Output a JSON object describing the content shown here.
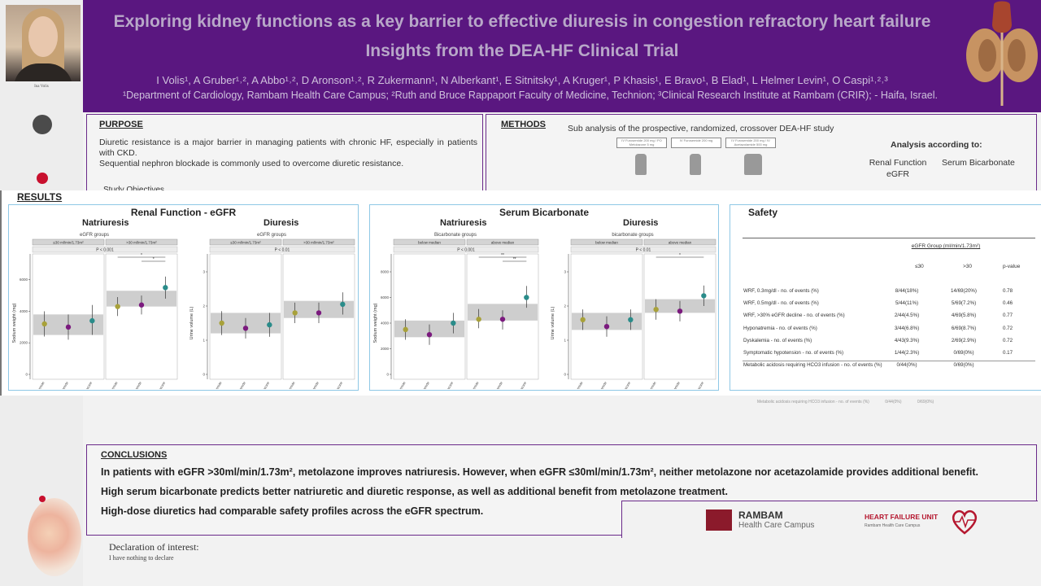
{
  "presenter": {
    "name": "Ina Volis"
  },
  "header": {
    "title_line1": "Exploring kidney functions as a key barrier to effective diuresis in congestion refractory heart failure",
    "title_line2": "Insights from the DEA-HF Clinical Trial",
    "authors": "I Volis¹, A Gruber¹˒², A Abbo¹˒², D Aronson¹˒², R Zukermann¹, N Alberkant¹, E Sitnitsky¹, A Kruger¹, P Khasis¹, E Bravo¹, B Elad¹, L Helmer Levin¹, O Caspi¹˒²˒³",
    "affiliations": "¹Department of Cardiology, Rambam Health Care Campus; ²Ruth and Bruce Rappaport Faculty of Medicine, Technion; ³Clinical Research Institute at Rambam (CRIR); - Haifa, Israel."
  },
  "purpose": {
    "title": "PURPOSE",
    "text1": "Diuretic resistance is a major barrier in managing patients with chronic HF, especially in patients with CKD.",
    "text2": "Sequential nephron blockade is commonly used to overcome diuretic resistance.",
    "study_objectives": "Study Objectives"
  },
  "methods": {
    "title": "METHODS",
    "subtitle": "Sub analysis of the prospective, randomized, crossover DEA-HF study",
    "analysis_title": "Analysis according to:",
    "renal_label": "Renal Function eGFR",
    "bicarb_label": "Serum Bicarbonate",
    "arm1": "IV Furosemide 200 mg / PO Metolazone 5 mg",
    "arm2": "IV Furosemide 200 mg",
    "arm3": "IV Furosemide 200 mg / IV Acetazolamide 500 mg"
  },
  "results": {
    "title": "RESULTS",
    "renal": {
      "heading": "Renal Function - eGFR",
      "natriuresis": "Natriuresis",
      "diuresis": "Diuresis",
      "group_title": "eGFR groups",
      "group_low": "≤30 ml/min/1.73m²",
      "group_high": ">30 ml/min/1.73m²"
    },
    "bicarb": {
      "heading": "Serum Bicarbonate",
      "natriuresis": "Natriuresis",
      "diuresis": "Diuresis",
      "group_title_nat": "Bicarbonate groups",
      "group_title_diu": "bicarbonate groups",
      "group_low": "below median",
      "group_high": "above median"
    },
    "labels": {
      "sodium_axis": "Sodium weight (mg)",
      "urine_axis": "Urine volume (L)",
      "p_001": "P < 0.001",
      "p_01": "P < 0.01",
      "star": "*",
      "stars": "**",
      "treatments": [
        "Furosemide",
        "Furosemide + acetazolamide",
        "Furosemide + metolazone"
      ]
    },
    "safety": {
      "title": "Safety",
      "group_header": "eGFR Group (ml/min/1.73m²)",
      "col_low": "≤30",
      "col_high": ">30",
      "col_p": "p-value",
      "rows": [
        {
          "label": "WRF, 0.3mg/dl - no. of events (%)",
          "low": "8/44(18%)",
          "high": "14/69(20%)",
          "p": "0.78"
        },
        {
          "label": "WRF, 0.5mg/dl - no. of events (%)",
          "low": "5/44(11%)",
          "high": "5/69(7.2%)",
          "p": "0.46"
        },
        {
          "label": "WRF, >30% eGFR decline - no. of events (%)",
          "low": "2/44(4.5%)",
          "high": "4/69(5.8%)",
          "p": "0.77"
        },
        {
          "label": "Hyponatremia - no. of events (%)",
          "low": "3/44(6.8%)",
          "high": "6/69(8.7%)",
          "p": "0.72"
        },
        {
          "label": "Dyskalemia - no. of events (%)",
          "low": "4/43(9.3%)",
          "high": "2/69(2.9%)",
          "p": "0.72"
        },
        {
          "label": "Symptomatic hypotension - no. of events (%)",
          "low": "1/44(2.3%)",
          "high": "0/69(0%)",
          "p": "0.17"
        },
        {
          "label": "Metabolic acidosis requiring HCO3 infusion - no. of events (%)",
          "low": "0/44(0%)",
          "high": "0/69(0%)",
          "p": ""
        }
      ],
      "ghost_row": "Metabolic acidosis requiring HCO3 infusion - no. of events (%)",
      "ghost_low": "0/44(0%)",
      "ghost_high": "0/69(0%)"
    }
  },
  "chart_data": [
    {
      "type": "scatter",
      "title": "Renal Function - eGFR: Natriuresis",
      "ylabel": "Sodium weight (mg)",
      "ylim": [
        0,
        6500
      ],
      "yticks": [
        0,
        2000,
        4000,
        6000
      ],
      "panels": [
        "≤30 ml/min/1.73m²",
        ">30 ml/min/1.73m²"
      ],
      "categories": [
        "Furosemide",
        "Furosemide + acetazolamide",
        "Furosemide + metolazone"
      ],
      "series": [
        {
          "name": "≤30 ml/min/1.73m²",
          "values": [
            3200,
            3000,
            3400
          ],
          "lower": [
            2400,
            2200,
            2500
          ],
          "upper": [
            4000,
            3800,
            4400
          ],
          "band": [
            2500,
            3800
          ]
        },
        {
          "name": ">30 ml/min/1.73m²",
          "values": [
            4300,
            4400,
            5500
          ],
          "lower": [
            3700,
            3800,
            4800
          ],
          "upper": [
            4900,
            5000,
            6200
          ],
          "band": [
            4300,
            5300
          ]
        }
      ],
      "annotations": [
        "P < 0.001",
        "*",
        "*"
      ]
    },
    {
      "type": "scatter",
      "title": "Renal Function - eGFR: Diuresis",
      "ylabel": "Urine volume (L)",
      "ylim": [
        0,
        3
      ],
      "yticks": [
        0,
        1,
        2,
        3
      ],
      "panels": [
        "≤30 ml/min/1.73m²",
        ">30 ml/min/1.73m²"
      ],
      "categories": [
        "Furosemide",
        "Furosemide + acetazolamide",
        "Furosemide + metolazone"
      ],
      "series": [
        {
          "name": "≤30 ml/min/1.73m²",
          "values": [
            1.5,
            1.35,
            1.45
          ],
          "lower": [
            1.15,
            1.05,
            1.1
          ],
          "upper": [
            1.85,
            1.65,
            1.8
          ],
          "band": [
            1.2,
            1.8
          ]
        },
        {
          "name": ">30 ml/min/1.73m²",
          "values": [
            1.8,
            1.8,
            2.05
          ],
          "lower": [
            1.5,
            1.5,
            1.75
          ],
          "upper": [
            2.1,
            2.1,
            2.4
          ],
          "band": [
            1.65,
            2.15
          ]
        }
      ],
      "annotations": [
        "P < 0.01"
      ]
    },
    {
      "type": "scatter",
      "title": "Serum Bicarbonate: Natriuresis",
      "ylabel": "Sodium weight (mg)",
      "ylim": [
        0,
        8000
      ],
      "yticks": [
        0,
        2000,
        4000,
        6000,
        8000
      ],
      "panels": [
        "below median",
        "above median"
      ],
      "categories": [
        "Furosemide",
        "Furosemide + acetazolamide",
        "Furosemide + metolazone"
      ],
      "series": [
        {
          "name": "below median",
          "values": [
            3500,
            3100,
            4000
          ],
          "lower": [
            2700,
            2300,
            3200
          ],
          "upper": [
            4300,
            3900,
            4800
          ],
          "band": [
            2900,
            4200
          ]
        },
        {
          "name": "above median",
          "values": [
            4300,
            4300,
            6000
          ],
          "lower": [
            3600,
            3500,
            5200
          ],
          "upper": [
            5100,
            5000,
            6900
          ],
          "band": [
            4200,
            5500
          ]
        }
      ],
      "annotations": [
        "P < 0.001",
        "**",
        "**"
      ]
    },
    {
      "type": "scatter",
      "title": "Serum Bicarbonate: Diuresis",
      "ylabel": "Urine volume (L)",
      "ylim": [
        0,
        3
      ],
      "yticks": [
        0,
        1,
        2,
        3
      ],
      "panels": [
        "below median",
        "above median"
      ],
      "categories": [
        "Furosemide",
        "Furosemide + acetazolamide",
        "Furosemide + metolazone"
      ],
      "series": [
        {
          "name": "below median",
          "values": [
            1.6,
            1.4,
            1.6
          ],
          "lower": [
            1.3,
            1.1,
            1.3
          ],
          "upper": [
            1.9,
            1.7,
            1.9
          ],
          "band": [
            1.3,
            1.8
          ]
        },
        {
          "name": "above median",
          "values": [
            1.9,
            1.85,
            2.3
          ],
          "lower": [
            1.6,
            1.55,
            2.0
          ],
          "upper": [
            2.2,
            2.15,
            2.6
          ],
          "band": [
            1.8,
            2.2
          ]
        }
      ],
      "annotations": [
        "P < 0.01",
        "*"
      ]
    }
  ],
  "conclusions": {
    "title": "CONCLUSIONS",
    "line1": "In patients with eGFR >30ml/min/1.73m², metolazone improves natriuresis. However, when eGFR ≤30ml/min/1.73m², neither metolazone nor acetazolamide provides additional benefit.",
    "line2": "High serum bicarbonate predicts better natriuretic and diuretic response, as well as additional benefit from metolazone treatment.",
    "line3": "High-dose diuretics had comparable safety profiles across the eGFR spectrum."
  },
  "logos": {
    "rambam_name": "RAMBAM",
    "rambam_sub": "Health Care Campus",
    "hfu_name": "HEART FAILURE UNIT",
    "hfu_sub": "Rambam Health Care Campus"
  },
  "declaration": {
    "title": "Declaration of interest:",
    "text": "I have nothing to declare"
  },
  "colors": {
    "header_bg": "#5a1780",
    "border": "#6a2a8a",
    "furosemide": "#a8a13a",
    "acetazolamide": "#7b1a7e",
    "metolazone": "#2a8c8a",
    "band": "#bdbdbd"
  }
}
